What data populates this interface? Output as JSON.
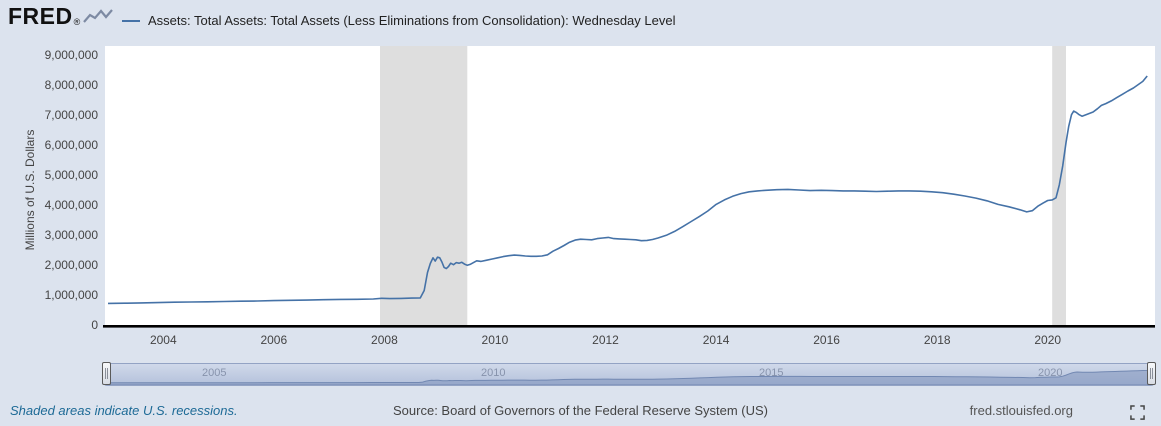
{
  "header": {
    "logo_text": "FRED",
    "registered_mark": "®",
    "legend": {
      "label": "Assets: Total Assets: Total Assets (Less Eliminations from Consolidation): Wednesday Level"
    }
  },
  "footer": {
    "recession_note": "Shaded areas indicate U.S. recessions.",
    "source": "Source: Board of Governors of the Federal Reserve System (US)",
    "site": "fred.stlouisfed.org"
  },
  "chart_data": {
    "type": "line",
    "title": "Assets: Total Assets: Total Assets (Less Eliminations from Consolidation): Wednesday Level",
    "xlabel": "",
    "ylabel": "Millions of U.S. Dollars",
    "xlim": [
      2003.0,
      2021.85
    ],
    "ylim": [
      0,
      9000000
    ],
    "x_ticks": [
      2004,
      2006,
      2008,
      2010,
      2012,
      2014,
      2016,
      2018,
      2020
    ],
    "y_ticks": [
      0,
      1000000,
      2000000,
      3000000,
      4000000,
      5000000,
      6000000,
      7000000,
      8000000,
      9000000
    ],
    "grid": false,
    "legend_position": "top",
    "line_color": "#4572a7",
    "recession_band_color": "#dedede",
    "recession_bands": [
      {
        "start": 2007.92,
        "end": 2009.5
      },
      {
        "start": 2020.08,
        "end": 2020.33
      }
    ],
    "series": [
      {
        "name": "Assets: Total Assets: Total Assets (Less Eliminations from Consolidation): Wednesday Level",
        "points": [
          [
            2003.0,
            720000
          ],
          [
            2003.3,
            728000
          ],
          [
            2003.6,
            735000
          ],
          [
            2003.9,
            748000
          ],
          [
            2004.2,
            760000
          ],
          [
            2004.5,
            768000
          ],
          [
            2004.8,
            775000
          ],
          [
            2005.1,
            785000
          ],
          [
            2005.4,
            792000
          ],
          [
            2005.7,
            800000
          ],
          [
            2006.0,
            815000
          ],
          [
            2006.3,
            822000
          ],
          [
            2006.6,
            830000
          ],
          [
            2006.9,
            842000
          ],
          [
            2007.2,
            852000
          ],
          [
            2007.5,
            858000
          ],
          [
            2007.8,
            868000
          ],
          [
            2007.95,
            890000
          ],
          [
            2008.1,
            880000
          ],
          [
            2008.3,
            886000
          ],
          [
            2008.5,
            895000
          ],
          [
            2008.65,
            905000
          ],
          [
            2008.72,
            1150000
          ],
          [
            2008.78,
            1750000
          ],
          [
            2008.83,
            2050000
          ],
          [
            2008.88,
            2240000
          ],
          [
            2008.92,
            2130000
          ],
          [
            2008.96,
            2260000
          ],
          [
            2009.0,
            2240000
          ],
          [
            2009.04,
            2100000
          ],
          [
            2009.08,
            1920000
          ],
          [
            2009.12,
            1880000
          ],
          [
            2009.16,
            1950000
          ],
          [
            2009.2,
            2060000
          ],
          [
            2009.25,
            2010000
          ],
          [
            2009.3,
            2080000
          ],
          [
            2009.35,
            2060000
          ],
          [
            2009.4,
            2090000
          ],
          [
            2009.45,
            2030000
          ],
          [
            2009.5,
            1990000
          ],
          [
            2009.55,
            2020000
          ],
          [
            2009.6,
            2070000
          ],
          [
            2009.67,
            2140000
          ],
          [
            2009.75,
            2120000
          ],
          [
            2009.85,
            2160000
          ],
          [
            2009.95,
            2200000
          ],
          [
            2010.05,
            2240000
          ],
          [
            2010.15,
            2280000
          ],
          [
            2010.25,
            2310000
          ],
          [
            2010.35,
            2330000
          ],
          [
            2010.45,
            2320000
          ],
          [
            2010.55,
            2300000
          ],
          [
            2010.65,
            2290000
          ],
          [
            2010.75,
            2290000
          ],
          [
            2010.85,
            2300000
          ],
          [
            2010.95,
            2340000
          ],
          [
            2011.05,
            2460000
          ],
          [
            2011.15,
            2550000
          ],
          [
            2011.25,
            2650000
          ],
          [
            2011.35,
            2760000
          ],
          [
            2011.45,
            2830000
          ],
          [
            2011.55,
            2860000
          ],
          [
            2011.65,
            2850000
          ],
          [
            2011.75,
            2840000
          ],
          [
            2011.85,
            2880000
          ],
          [
            2011.95,
            2900000
          ],
          [
            2012.05,
            2920000
          ],
          [
            2012.15,
            2880000
          ],
          [
            2012.25,
            2870000
          ],
          [
            2012.35,
            2860000
          ],
          [
            2012.45,
            2850000
          ],
          [
            2012.55,
            2840000
          ],
          [
            2012.65,
            2810000
          ],
          [
            2012.75,
            2820000
          ],
          [
            2012.85,
            2850000
          ],
          [
            2012.95,
            2900000
          ],
          [
            2013.1,
            2990000
          ],
          [
            2013.25,
            3120000
          ],
          [
            2013.4,
            3280000
          ],
          [
            2013.55,
            3450000
          ],
          [
            2013.7,
            3620000
          ],
          [
            2013.85,
            3800000
          ],
          [
            2014.0,
            4020000
          ],
          [
            2014.15,
            4170000
          ],
          [
            2014.3,
            4290000
          ],
          [
            2014.45,
            4380000
          ],
          [
            2014.6,
            4440000
          ],
          [
            2014.75,
            4470000
          ],
          [
            2014.9,
            4490000
          ],
          [
            2015.1,
            4510000
          ],
          [
            2015.3,
            4520000
          ],
          [
            2015.5,
            4500000
          ],
          [
            2015.7,
            4480000
          ],
          [
            2015.9,
            4490000
          ],
          [
            2016.1,
            4480000
          ],
          [
            2016.3,
            4470000
          ],
          [
            2016.5,
            4470000
          ],
          [
            2016.7,
            4460000
          ],
          [
            2016.9,
            4450000
          ],
          [
            2017.1,
            4460000
          ],
          [
            2017.3,
            4470000
          ],
          [
            2017.5,
            4470000
          ],
          [
            2017.7,
            4460000
          ],
          [
            2017.9,
            4440000
          ],
          [
            2018.1,
            4410000
          ],
          [
            2018.3,
            4360000
          ],
          [
            2018.5,
            4300000
          ],
          [
            2018.7,
            4230000
          ],
          [
            2018.9,
            4140000
          ],
          [
            2019.1,
            4020000
          ],
          [
            2019.3,
            3940000
          ],
          [
            2019.5,
            3840000
          ],
          [
            2019.62,
            3770000
          ],
          [
            2019.72,
            3810000
          ],
          [
            2019.82,
            3960000
          ],
          [
            2019.92,
            4070000
          ],
          [
            2020.0,
            4150000
          ],
          [
            2020.08,
            4170000
          ],
          [
            2020.15,
            4240000
          ],
          [
            2020.21,
            4670000
          ],
          [
            2020.27,
            5300000
          ],
          [
            2020.33,
            6080000
          ],
          [
            2020.38,
            6620000
          ],
          [
            2020.43,
            7010000
          ],
          [
            2020.47,
            7130000
          ],
          [
            2020.52,
            7080000
          ],
          [
            2020.57,
            7010000
          ],
          [
            2020.62,
            6960000
          ],
          [
            2020.68,
            7000000
          ],
          [
            2020.75,
            7050000
          ],
          [
            2020.82,
            7100000
          ],
          [
            2020.9,
            7210000
          ],
          [
            2020.97,
            7320000
          ],
          [
            2021.05,
            7380000
          ],
          [
            2021.15,
            7470000
          ],
          [
            2021.25,
            7580000
          ],
          [
            2021.35,
            7690000
          ],
          [
            2021.45,
            7800000
          ],
          [
            2021.55,
            7900000
          ],
          [
            2021.65,
            8030000
          ],
          [
            2021.72,
            8120000
          ],
          [
            2021.8,
            8300000
          ]
        ]
      }
    ],
    "slider": {
      "year_labels": [
        "2005",
        "2010",
        "2015",
        "2020"
      ],
      "selected_range": [
        2003.0,
        2021.85
      ]
    }
  }
}
